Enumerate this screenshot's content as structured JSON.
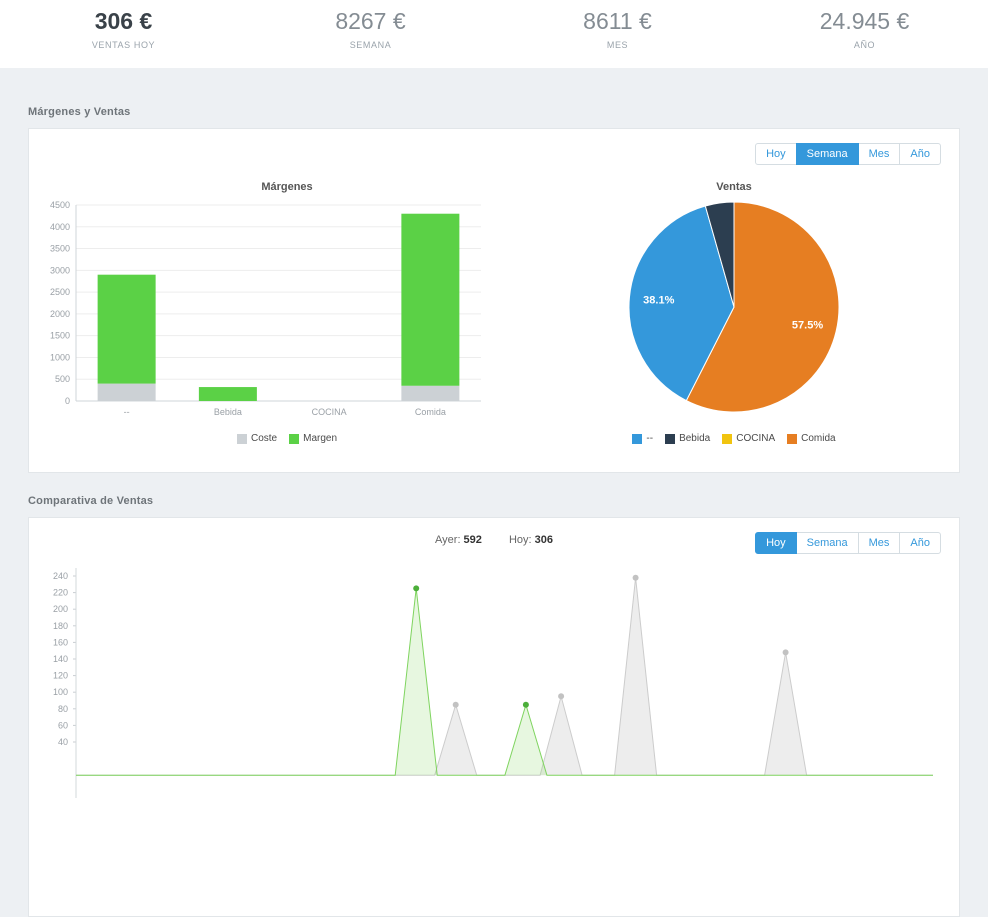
{
  "stats": [
    {
      "value": "306 €",
      "label": "VENTAS HOY"
    },
    {
      "value": "8267 €",
      "label": "SEMANA"
    },
    {
      "value": "8611 €",
      "label": "MES"
    },
    {
      "value": "24.945 €",
      "label": "AÑO"
    }
  ],
  "sections": {
    "margins": {
      "title": "Márgenes y Ventas",
      "range_buttons": [
        {
          "label": "Hoy"
        },
        {
          "label": "Semana",
          "active": true
        },
        {
          "label": "Mes"
        },
        {
          "label": "Año"
        }
      ]
    },
    "comparison": {
      "title": "Comparativa de Ventas",
      "summary": {
        "ayer_label": "Ayer:",
        "ayer_value": "592",
        "hoy_label": "Hoy:",
        "hoy_value": "306"
      },
      "range_buttons": [
        {
          "label": "Hoy",
          "active": true
        },
        {
          "label": "Semana"
        },
        {
          "label": "Mes"
        },
        {
          "label": "Año"
        }
      ]
    }
  },
  "chart_data": [
    {
      "type": "bar",
      "title": "Márgenes",
      "categories": [
        "--",
        "Bebida",
        "COCINA",
        "Comida"
      ],
      "series": [
        {
          "name": "Coste",
          "color": "#ccd1d5",
          "values": [
            400,
            0,
            0,
            350
          ]
        },
        {
          "name": "Margen",
          "color": "#5bd146",
          "values": [
            2500,
            320,
            0,
            3950
          ]
        }
      ],
      "stacked": true,
      "ylim": [
        0,
        4500
      ],
      "ytick_step": 500,
      "legend_position": "bottom"
    },
    {
      "type": "pie",
      "title": "Ventas",
      "slices": [
        {
          "name": "Comida",
          "value": 57.5,
          "color": "#e67e22",
          "label": "57.5%"
        },
        {
          "name": "--",
          "value": 38.1,
          "color": "#3498db",
          "label": "38.1%"
        },
        {
          "name": "Bebida",
          "value": 4.4,
          "color": "#2c3e50",
          "label": ""
        },
        {
          "name": "COCINA",
          "value": 0,
          "color": "#f1c40f",
          "label": ""
        }
      ],
      "legend": [
        {
          "name": "--",
          "color": "#3498db"
        },
        {
          "name": "Bebida",
          "color": "#2c3e50"
        },
        {
          "name": "COCINA",
          "color": "#f1c40f"
        },
        {
          "name": "Comida",
          "color": "#e67e22"
        }
      ],
      "start_angle_deg": 0,
      "legend_position": "bottom"
    },
    {
      "type": "area",
      "yticks": [
        240,
        220,
        200,
        180,
        160,
        140,
        120,
        100,
        80,
        60,
        40
      ],
      "ylim": [
        0,
        250
      ],
      "series": [
        {
          "name": "Ayer",
          "color": "#cccccc",
          "fill": "rgba(204,204,204,0.35)",
          "dot": "#c2c2c2",
          "peaks": [
            {
              "x_frac": 0.443,
              "v": 85
            },
            {
              "x_frac": 0.566,
              "v": 95
            },
            {
              "x_frac": 0.653,
              "v": 238
            },
            {
              "x_frac": 0.828,
              "v": 148
            }
          ]
        },
        {
          "name": "Hoy",
          "color": "#7fd45f",
          "fill": "rgba(144,217,115,0.22)",
          "dot": "#4caf3a",
          "peaks": [
            {
              "x_frac": 0.397,
              "v": 225
            },
            {
              "x_frac": 0.525,
              "v": 85
            }
          ]
        }
      ]
    }
  ]
}
